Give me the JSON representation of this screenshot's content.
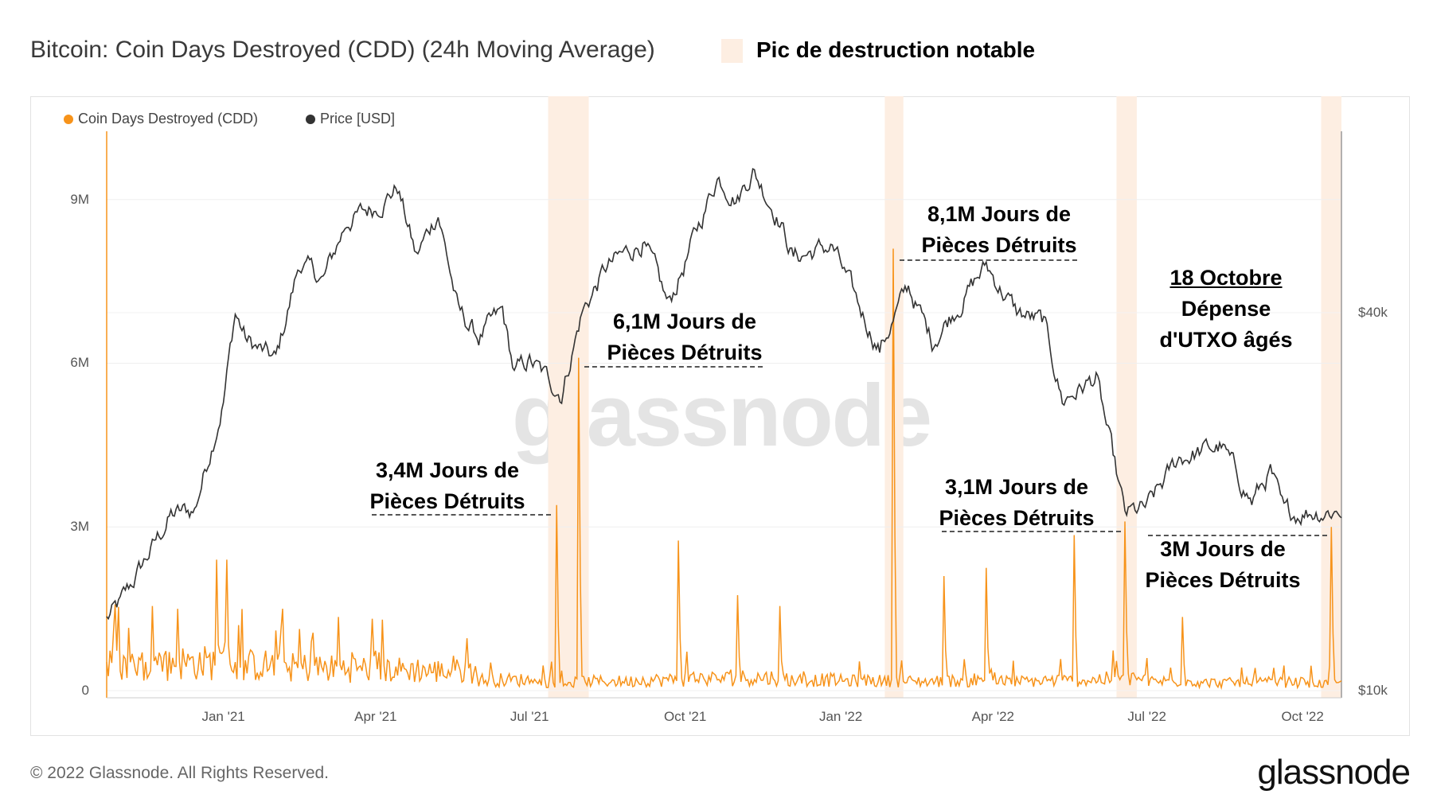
{
  "header": {
    "title": "Bitcoin: Coin Days Destroyed (CDD) (24h Moving Average)",
    "band_legend": "Pic de destruction notable"
  },
  "footer": {
    "copyright": "© 2022 Glassnode. All Rights Reserved.",
    "logo": "glassnode"
  },
  "watermark": "glassnode",
  "colors": {
    "cdd": "#f7931a",
    "price": "#333333",
    "band": "#fdeee2"
  },
  "chart_data": {
    "type": "line",
    "title": "Bitcoin: Coin Days Destroyed (CDD) (24h Moving Average)",
    "legend": [
      "Coin Days Destroyed (CDD)",
      "Price [USD]"
    ],
    "legend_placement": "top-left",
    "x_range": [
      "2020-10-24",
      "2022-10-24"
    ],
    "x_ticks": [
      "Jan '21",
      "Apr '21",
      "Jul '21",
      "Oct '21",
      "Jan '22",
      "Apr '22",
      "Jul '22",
      "Oct '22"
    ],
    "x_tick_dates": [
      "2021-01-01",
      "2021-04-01",
      "2021-07-01",
      "2021-10-01",
      "2022-01-01",
      "2022-04-01",
      "2022-07-01",
      "2022-10-01"
    ],
    "y_left": {
      "label": "CDD",
      "ticks": [
        "0",
        "3M",
        "6M",
        "9M"
      ],
      "tick_values": [
        0,
        3000000,
        6000000,
        9000000
      ],
      "range": [
        0,
        10250000
      ]
    },
    "y_right": {
      "label": "Price [USD]",
      "scale": "log",
      "ticks": [
        "$10k",
        "$40k"
      ],
      "tick_values": [
        10000,
        40000
      ],
      "range": [
        10000,
        77800
      ]
    },
    "series": [
      {
        "name": "Price [USD]",
        "points": [
          [
            "2020-10-24",
            13000
          ],
          [
            "2020-11-01",
            13700
          ],
          [
            "2020-11-15",
            16000
          ],
          [
            "2020-12-01",
            19000
          ],
          [
            "2020-12-15",
            19400
          ],
          [
            "2021-01-01",
            29000
          ],
          [
            "2021-01-08",
            40000
          ],
          [
            "2021-01-15",
            36000
          ],
          [
            "2021-02-01",
            33500
          ],
          [
            "2021-02-15",
            48000
          ],
          [
            "2021-03-01",
            45000
          ],
          [
            "2021-03-15",
            56000
          ],
          [
            "2021-04-01",
            59000
          ],
          [
            "2021-04-14",
            63500
          ],
          [
            "2021-04-25",
            49000
          ],
          [
            "2021-05-08",
            58000
          ],
          [
            "2021-05-20",
            40000
          ],
          [
            "2021-06-01",
            36500
          ],
          [
            "2021-06-15",
            40000
          ],
          [
            "2021-06-22",
            32000
          ],
          [
            "2021-07-01",
            33500
          ],
          [
            "2021-07-20",
            29800
          ],
          [
            "2021-08-01",
            40000
          ],
          [
            "2021-08-15",
            47000
          ],
          [
            "2021-09-06",
            52000
          ],
          [
            "2021-09-21",
            41000
          ],
          [
            "2021-10-01",
            48000
          ],
          [
            "2021-10-20",
            66000
          ],
          [
            "2021-11-01",
            61000
          ],
          [
            "2021-11-10",
            67500
          ],
          [
            "2021-11-25",
            57000
          ],
          [
            "2021-12-04",
            49000
          ],
          [
            "2021-12-27",
            51000
          ],
          [
            "2022-01-10",
            41800
          ],
          [
            "2022-01-24",
            35000
          ],
          [
            "2022-02-10",
            44000
          ],
          [
            "2022-02-24",
            36000
          ],
          [
            "2022-03-28",
            47500
          ],
          [
            "2022-04-15",
            40000
          ],
          [
            "2022-05-01",
            38500
          ],
          [
            "2022-05-12",
            29000
          ],
          [
            "2022-06-01",
            31500
          ],
          [
            "2022-06-18",
            19000
          ],
          [
            "2022-07-01",
            19500
          ],
          [
            "2022-07-20",
            23500
          ],
          [
            "2022-08-14",
            24500
          ],
          [
            "2022-09-01",
            20000
          ],
          [
            "2022-09-12",
            22300
          ],
          [
            "2022-09-20",
            19000
          ],
          [
            "2022-10-01",
            19300
          ],
          [
            "2022-10-24",
            19400
          ]
        ]
      },
      {
        "name": "Coin Days Destroyed (CDD)",
        "baseline_monthly": [
          [
            "2020-10",
            550000
          ],
          [
            "2020-11",
            550000
          ],
          [
            "2020-12",
            600000
          ],
          [
            "2021-01",
            550000
          ],
          [
            "2021-02",
            500000
          ],
          [
            "2021-03",
            480000
          ],
          [
            "2021-04",
            450000
          ],
          [
            "2021-05",
            420000
          ],
          [
            "2021-06",
            230000
          ],
          [
            "2021-07",
            180000
          ],
          [
            "2021-08",
            200000
          ],
          [
            "2021-09",
            230000
          ],
          [
            "2021-10",
            260000
          ],
          [
            "2021-11",
            280000
          ],
          [
            "2021-12",
            230000
          ],
          [
            "2022-01",
            210000
          ],
          [
            "2022-02",
            200000
          ],
          [
            "2022-03",
            210000
          ],
          [
            "2022-04",
            200000
          ],
          [
            "2022-05",
            220000
          ],
          [
            "2022-06",
            250000
          ],
          [
            "2022-07",
            200000
          ],
          [
            "2022-08",
            170000
          ],
          [
            "2022-09",
            180000
          ],
          [
            "2022-10",
            150000
          ]
        ],
        "spikes": [
          [
            "2020-11-20",
            1550000
          ],
          [
            "2020-12-05",
            1500000
          ],
          [
            "2020-12-28",
            2400000
          ],
          [
            "2021-01-03",
            2400000
          ],
          [
            "2021-01-10",
            1200000
          ],
          [
            "2021-02-05",
            1500000
          ],
          [
            "2021-03-10",
            1350000
          ],
          [
            "2021-04-05",
            1300000
          ],
          [
            "2021-07-17",
            3400000
          ],
          [
            "2021-07-30",
            6100000
          ],
          [
            "2021-09-27",
            2750000
          ],
          [
            "2021-11-01",
            1750000
          ],
          [
            "2021-11-26",
            1550000
          ],
          [
            "2022-02-01",
            8100000
          ],
          [
            "2022-03-03",
            2100000
          ],
          [
            "2022-03-28",
            2250000
          ],
          [
            "2022-05-19",
            2850000
          ],
          [
            "2022-06-18",
            3100000
          ],
          [
            "2022-07-22",
            1350000
          ],
          [
            "2022-10-18",
            3000000
          ]
        ]
      }
    ],
    "highlight_bands": [
      [
        "2021-07-12",
        "2021-08-05"
      ],
      [
        "2022-01-27",
        "2022-02-07"
      ],
      [
        "2022-06-13",
        "2022-06-25"
      ],
      [
        "2022-10-12",
        "2022-10-24"
      ]
    ],
    "annotations": [
      {
        "line1": "3,4M Jours de",
        "line2": "Pièces Détruits",
        "value": 3400000
      },
      {
        "line1": "6,1M Jours de",
        "line2": "Pièces Détruits",
        "value": 6100000
      },
      {
        "line1": "8,1M Jours de",
        "line2": "Pièces Détruits",
        "value": 8100000
      },
      {
        "line1": "3,1M Jours de",
        "line2": "Pièces Détruits",
        "value": 3100000
      },
      {
        "line1": "3M Jours de",
        "line2": "Pièces Détruits",
        "value": 3000000
      }
    ],
    "note": {
      "date": "18 Octobre",
      "line2": "Dépense",
      "line3": "d'UTXO âgés"
    }
  }
}
